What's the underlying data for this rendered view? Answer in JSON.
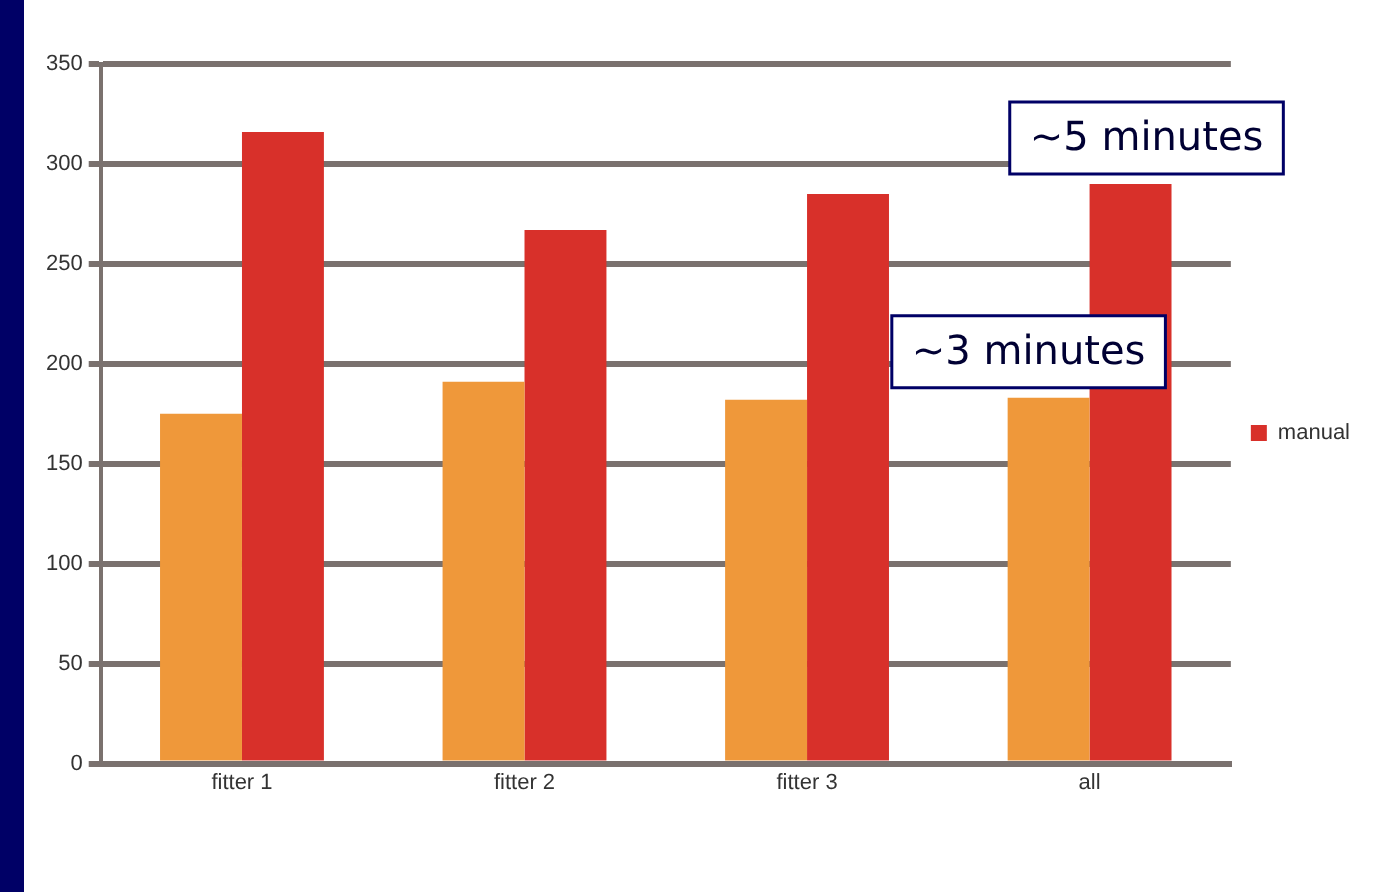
{
  "chart_data": {
    "type": "bar",
    "categories": [
      "fitter 1",
      "fitter 2",
      "fitter 3",
      "all"
    ],
    "series": [
      {
        "color": "#ef983a",
        "values": [
          175,
          191,
          182,
          183
        ]
      },
      {
        "name": "manual",
        "color": "#d8302a",
        "values": [
          316,
          267,
          285,
          290
        ]
      }
    ],
    "ylim": [
      0,
      350
    ],
    "yticks": [
      0,
      50,
      100,
      150,
      200,
      250,
      300,
      350
    ],
    "grid": "y",
    "legend": "right",
    "annotations": [
      "~5 minutes",
      "~3 minutes"
    ]
  }
}
